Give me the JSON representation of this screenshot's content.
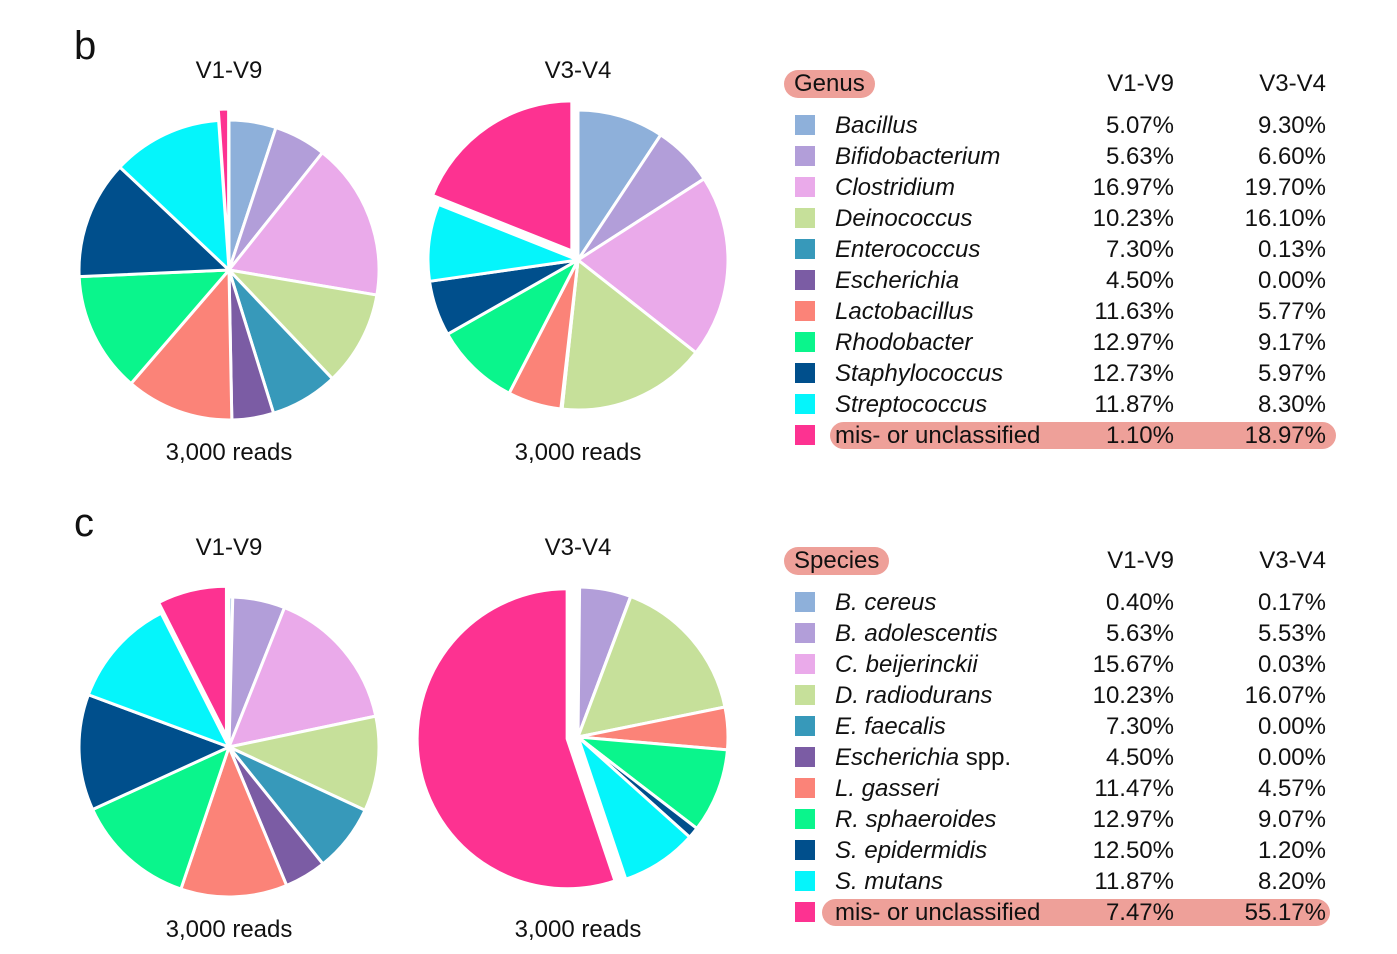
{
  "colors": {
    "Bacillus": "#8eb0da",
    "Bifidobacterium": "#b29ed9",
    "Clostridium": "#eaaaea",
    "Deinococcus": "#c6e09a",
    "Enterococcus": "#3799ba",
    "Escherichia": "#7b5ca4",
    "Lactobacillus": "#fb8378",
    "Rhodobacter": "#0af58c",
    "Staphylococcus": "#004f8c",
    "Streptococcus": "#05f5fb",
    "misc": "#fd3291",
    "highlight": "#eea099"
  },
  "chart_data": [
    {
      "panel": "b",
      "type": "pie",
      "header_label": "Genus",
      "column_labels": [
        "V1-V9",
        "V3-V4"
      ],
      "categories": [
        "Bacillus",
        "Bifidobacterium",
        "Clostridium",
        "Deinococcus",
        "Enterococcus",
        "Escherichia",
        "Lactobacillus",
        "Rhodobacter",
        "Staphylococcus",
        "Streptococcus",
        "mis- or unclassified"
      ],
      "color_keys": [
        "Bacillus",
        "Bifidobacterium",
        "Clostridium",
        "Deinococcus",
        "Enterococcus",
        "Escherichia",
        "Lactobacillus",
        "Rhodobacter",
        "Staphylococcus",
        "Streptococcus",
        "misc"
      ],
      "italic": [
        true,
        true,
        true,
        true,
        true,
        true,
        true,
        true,
        true,
        true,
        false
      ],
      "suffix": [
        "",
        "",
        "",
        "",
        "",
        "",
        "",
        "",
        "",
        "",
        ""
      ],
      "series": [
        {
          "name": "V1-V9",
          "reads": "3,000 reads",
          "values": [
            5.07,
            5.63,
            16.97,
            10.23,
            7.3,
            4.5,
            11.63,
            12.97,
            12.73,
            11.87,
            1.1
          ],
          "labels": [
            "5.07%",
            "5.63%",
            "16.97%",
            "10.23%",
            "7.30%",
            "4.50%",
            "11.63%",
            "12.97%",
            "12.73%",
            "11.87%",
            "1.10%"
          ]
        },
        {
          "name": "V3-V4",
          "reads": "3,000 reads",
          "values": [
            9.3,
            6.6,
            19.7,
            16.1,
            0.13,
            0.0,
            5.77,
            9.17,
            5.97,
            8.3,
            18.97
          ],
          "labels": [
            "9.30%",
            "6.60%",
            "19.70%",
            "16.10%",
            "0.13%",
            "0.00%",
            "5.77%",
            "9.17%",
            "5.97%",
            "8.30%",
            "18.97%"
          ]
        }
      ]
    },
    {
      "panel": "c",
      "type": "pie",
      "header_label": "Species",
      "column_labels": [
        "V1-V9",
        "V3-V4"
      ],
      "categories": [
        "B. cereus",
        "B. adolescentis",
        "C. beijerinckii",
        "D. radiodurans",
        "E. faecalis",
        "Escherichia",
        "L. gasseri",
        "R. sphaeroides",
        "S. epidermidis",
        "S. mutans",
        "mis- or unclassified"
      ],
      "color_keys": [
        "Bacillus",
        "Bifidobacterium",
        "Clostridium",
        "Deinococcus",
        "Enterococcus",
        "Escherichia",
        "Lactobacillus",
        "Rhodobacter",
        "Staphylococcus",
        "Streptococcus",
        "misc"
      ],
      "italic": [
        true,
        true,
        true,
        true,
        true,
        true,
        true,
        true,
        true,
        true,
        false
      ],
      "suffix": [
        "",
        "",
        "",
        "",
        "",
        " spp.",
        "",
        "",
        "",
        "",
        ""
      ],
      "series": [
        {
          "name": "V1-V9",
          "reads": "3,000 reads",
          "values": [
            0.4,
            5.63,
            15.67,
            10.23,
            7.3,
            4.5,
            11.47,
            12.97,
            12.5,
            11.87,
            7.47
          ],
          "labels": [
            "0.40%",
            "5.63%",
            "15.67%",
            "10.23%",
            "7.30%",
            "4.50%",
            "11.47%",
            "12.97%",
            "12.50%",
            "11.87%",
            "7.47%"
          ]
        },
        {
          "name": "V3-V4",
          "reads": "3,000 reads",
          "values": [
            0.17,
            5.53,
            0.03,
            16.07,
            0.0,
            0.0,
            4.57,
            9.07,
            1.2,
            8.2,
            55.17
          ],
          "labels": [
            "0.17%",
            "5.53%",
            "0.03%",
            "16.07%",
            "0.00%",
            "0.00%",
            "4.57%",
            "9.07%",
            "1.20%",
            "8.20%",
            "55.17%"
          ]
        }
      ]
    }
  ]
}
